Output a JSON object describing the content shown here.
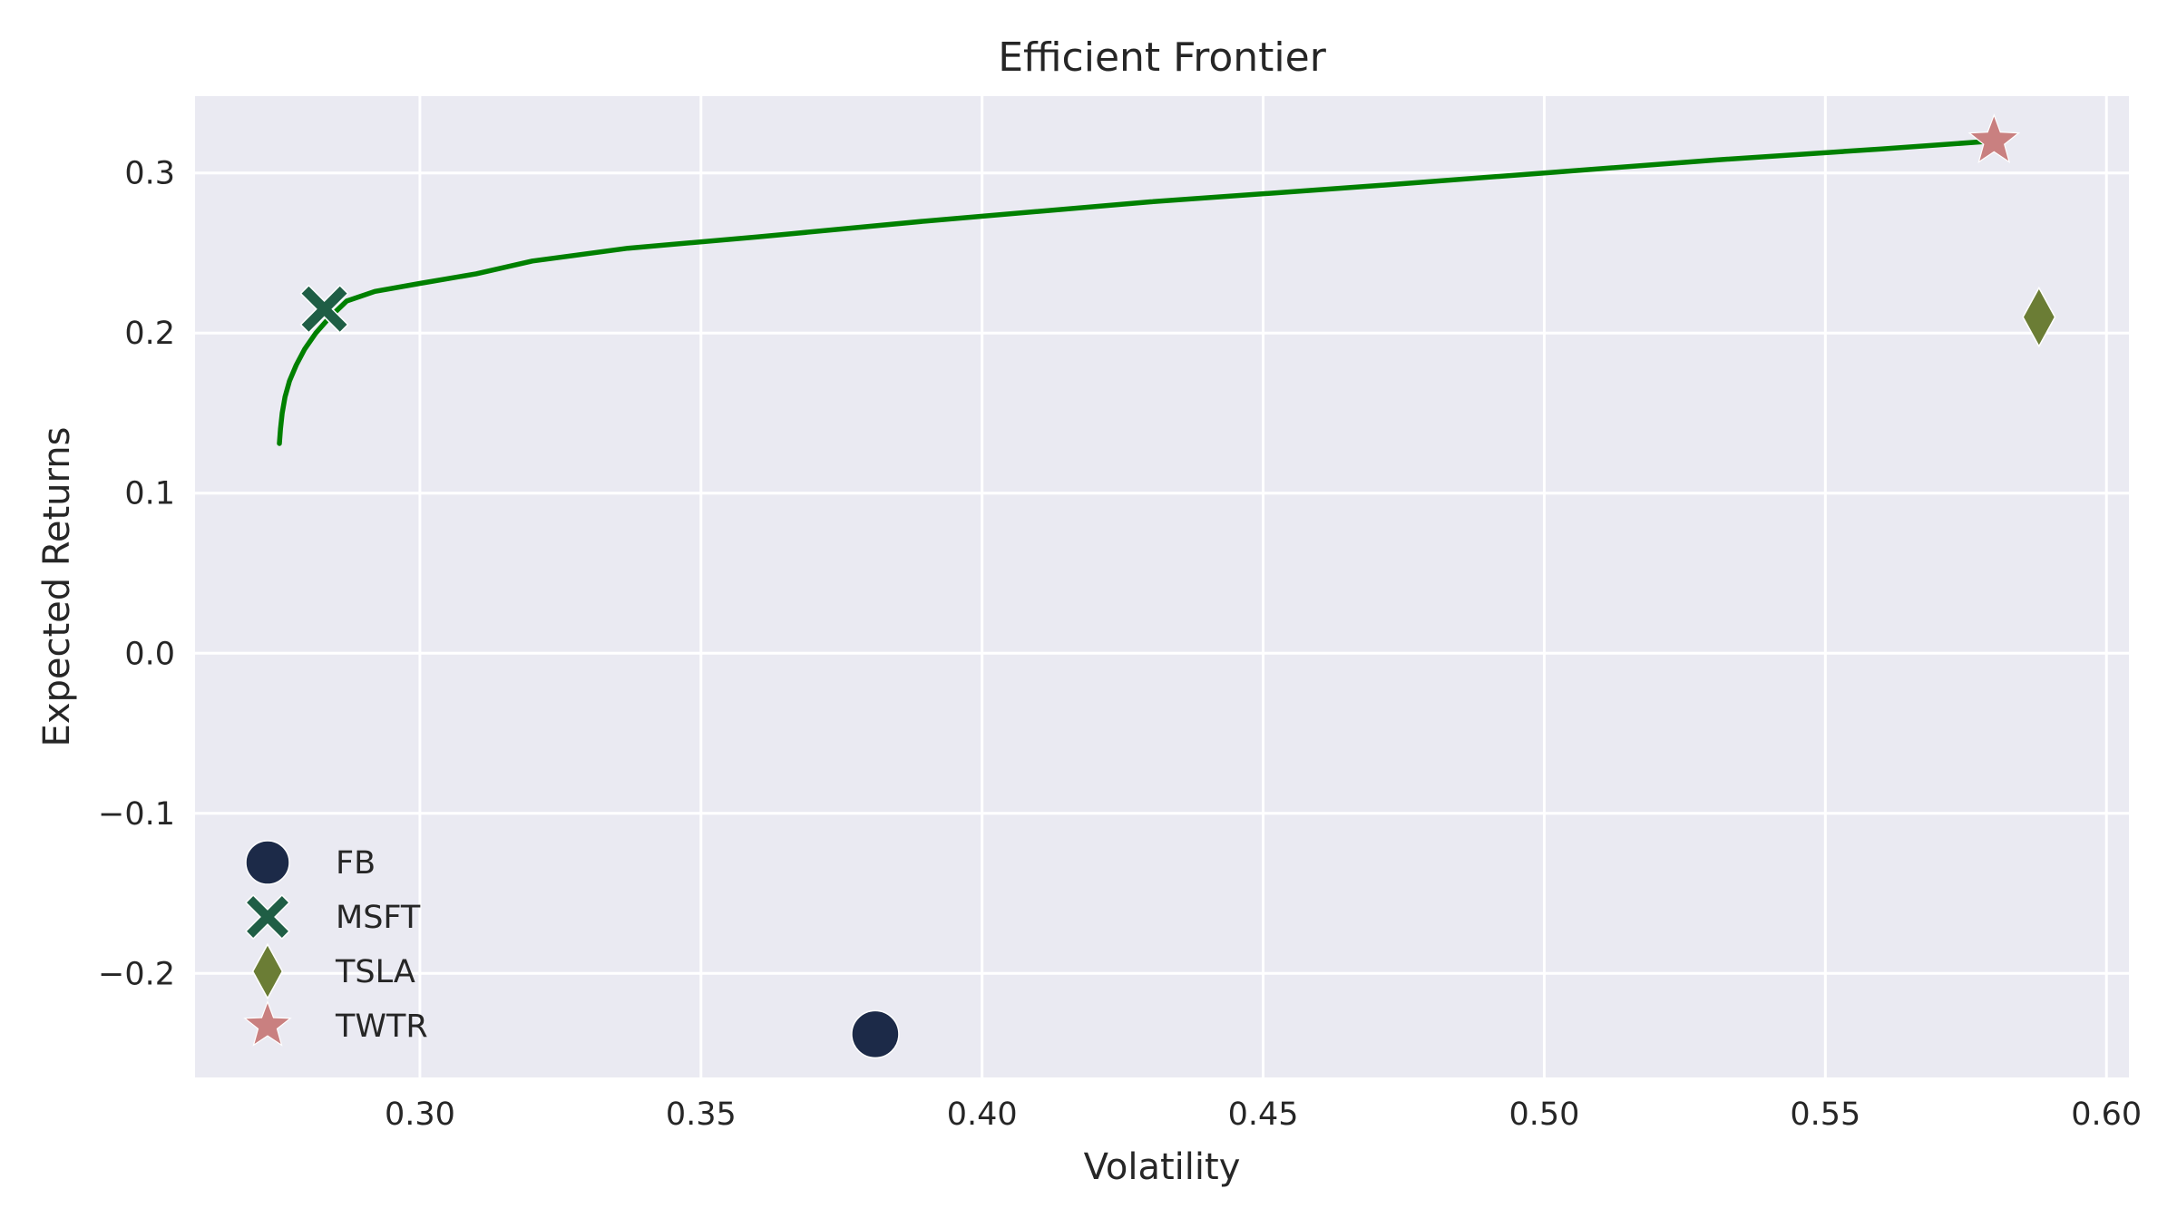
{
  "chart_data": {
    "type": "scatter",
    "title": "Efficient Frontier",
    "xlabel": "Volatility",
    "ylabel": "Expected Returns",
    "xlim": [
      0.26,
      0.604
    ],
    "ylim": [
      -0.265,
      0.348
    ],
    "x_ticks": [
      0.3,
      0.35,
      0.4,
      0.45,
      0.5,
      0.55,
      0.6
    ],
    "x_tick_labels": [
      "0.30",
      "0.35",
      "0.40",
      "0.45",
      "0.50",
      "0.55",
      "0.60"
    ],
    "y_ticks": [
      -0.2,
      -0.1,
      0.0,
      0.1,
      0.2,
      0.3
    ],
    "y_tick_labels": [
      "−0.2",
      "−0.1",
      "0.0",
      "0.1",
      "0.2",
      "0.3"
    ],
    "grid": true,
    "legend_position": "lower-left",
    "background_color": "#eaeaf2",
    "frontier": {
      "color": "#008000",
      "x": [
        0.275,
        0.2752,
        0.2755,
        0.276,
        0.2768,
        0.278,
        0.2795,
        0.2815,
        0.284,
        0.287,
        0.292,
        0.3,
        0.31,
        0.32,
        0.337,
        0.36,
        0.39,
        0.43,
        0.47,
        0.5,
        0.53,
        0.56,
        0.58
      ],
      "y": [
        0.131,
        0.14,
        0.15,
        0.16,
        0.17,
        0.18,
        0.19,
        0.2,
        0.21,
        0.22,
        0.226,
        0.231,
        0.237,
        0.245,
        0.253,
        0.26,
        0.27,
        0.282,
        0.292,
        0.3,
        0.308,
        0.315,
        0.32
      ]
    },
    "series": [
      {
        "name": "FB",
        "marker": "circle",
        "color": "#1c2a48",
        "x": [
          0.381
        ],
        "y": [
          -0.238
        ]
      },
      {
        "name": "MSFT",
        "marker": "x",
        "color": "#1f5e45",
        "x": [
          0.283
        ],
        "y": [
          0.215
        ]
      },
      {
        "name": "TSLA",
        "marker": "diamond",
        "color": "#6b7d35",
        "x": [
          0.588
        ],
        "y": [
          0.21
        ]
      },
      {
        "name": "TWTR",
        "marker": "star",
        "color": "#c98080",
        "x": [
          0.58
        ],
        "y": [
          0.32
        ]
      }
    ]
  }
}
